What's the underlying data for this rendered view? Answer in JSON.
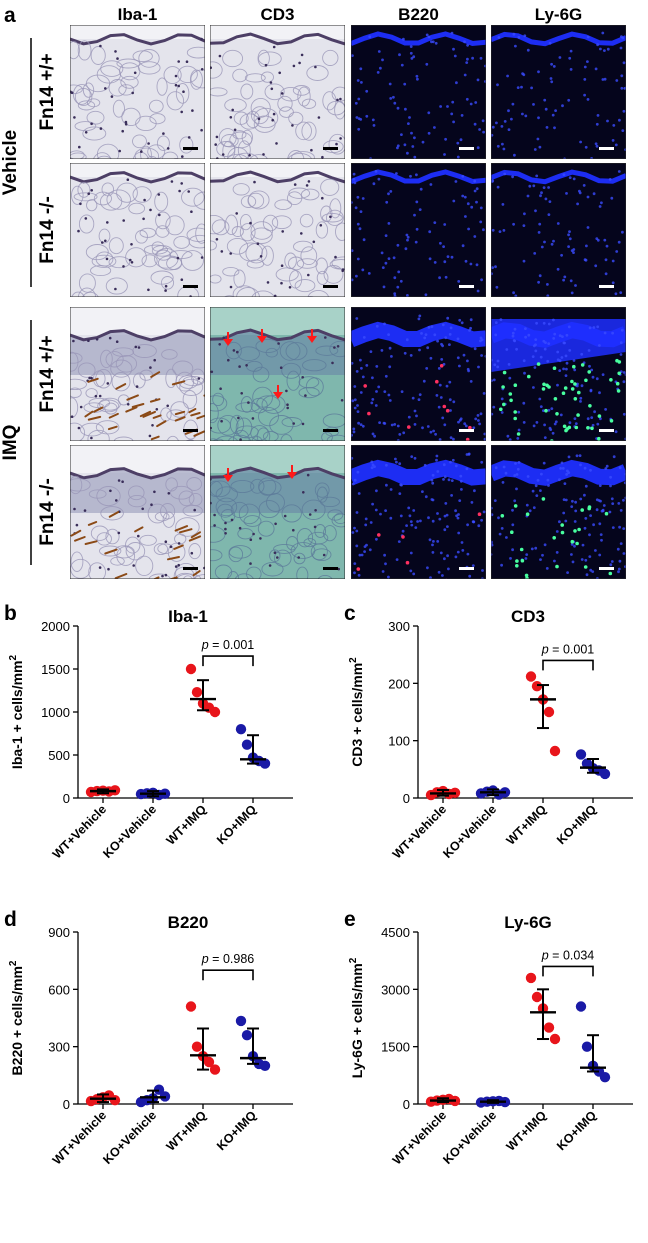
{
  "panel_a": {
    "letter": "a",
    "columns": [
      "Iba-1",
      "CD3",
      "B220",
      "Ly-6G"
    ],
    "groups": [
      {
        "label": "Vehicle",
        "rows": [
          "Fn14 +/+",
          "Fn14 -/-"
        ]
      },
      {
        "label": "IMQ",
        "rows": [
          "Fn14 +/+",
          "Fn14 -/-"
        ]
      }
    ],
    "colors": {
      "ihc_background": "#e4e4ec",
      "teal_background": "#7fb7ad",
      "fluor_background": "#05051c",
      "nuclear_stain": "#1f2fff",
      "b220_signal": "#ff3060",
      "ly6g_signal": "#48ffa0",
      "arrow": "#ff1a1a",
      "scale_bar_dark": "#000000",
      "scale_bar_light": "#ffffff"
    }
  },
  "chart_data": [
    {
      "panel": "b",
      "type": "scatter",
      "title": "Iba-1",
      "xlabel": "",
      "ylabel": "Iba-1 + cells/mm",
      "ylabel_superscript": "2",
      "ylim": [
        0,
        2000
      ],
      "yticks": [
        0,
        500,
        1000,
        1500,
        2000
      ],
      "categories": [
        "WT+Vehicle",
        "KO+Vehicle",
        "WT+IMQ",
        "KO+IMQ"
      ],
      "series": [
        {
          "category": "WT+Vehicle",
          "color": "#e8151b",
          "points": [
            70,
            80,
            85,
            75,
            90
          ],
          "mean": 80,
          "sd_low": 55,
          "sd_high": 100
        },
        {
          "category": "KO+Vehicle",
          "color": "#1a1aa6",
          "points": [
            45,
            55,
            60,
            35,
            50
          ],
          "mean": 50,
          "sd_low": 20,
          "sd_high": 80
        },
        {
          "category": "WT+IMQ",
          "color": "#e8151b",
          "points": [
            1500,
            1230,
            1100,
            1050,
            1000
          ],
          "mean": 1150,
          "sd_low": 1020,
          "sd_high": 1370
        },
        {
          "category": "KO+IMQ",
          "color": "#1a1aa6",
          "points": [
            800,
            620,
            470,
            430,
            400
          ],
          "mean": 450,
          "sd_low": 400,
          "sd_high": 730
        }
      ],
      "annotation": {
        "text": "p = 0.001",
        "between": [
          "WT+IMQ",
          "KO+IMQ"
        ],
        "y": 1650
      }
    },
    {
      "panel": "c",
      "type": "scatter",
      "title": "CD3",
      "xlabel": "",
      "ylabel": "CD3 + cells/mm",
      "ylabel_superscript": "2",
      "ylim": [
        0,
        300
      ],
      "yticks": [
        0,
        100,
        200,
        300
      ],
      "categories": [
        "WT+Vehicle",
        "KO+Vehicle",
        "WT+IMQ",
        "KO+IMQ"
      ],
      "series": [
        {
          "category": "WT+Vehicle",
          "color": "#e8151b",
          "points": [
            5,
            10,
            12,
            7,
            9
          ],
          "mean": 8,
          "sd_low": 4,
          "sd_high": 14
        },
        {
          "category": "KO+Vehicle",
          "color": "#1a1aa6",
          "points": [
            8,
            11,
            13,
            6,
            10
          ],
          "mean": 10,
          "sd_low": 5,
          "sd_high": 15
        },
        {
          "category": "WT+IMQ",
          "color": "#e8151b",
          "points": [
            212,
            195,
            172,
            150,
            82
          ],
          "mean": 172,
          "sd_low": 122,
          "sd_high": 197
        },
        {
          "category": "KO+IMQ",
          "color": "#1a1aa6",
          "points": [
            76,
            60,
            52,
            48,
            42
          ],
          "mean": 53,
          "sd_low": 44,
          "sd_high": 68
        }
      ],
      "annotation": {
        "text": "p = 0.001",
        "between": [
          "WT+IMQ",
          "KO+IMQ"
        ],
        "y": 240
      }
    },
    {
      "panel": "d",
      "type": "scatter",
      "title": "B220",
      "xlabel": "",
      "ylabel": "B220 + cells/mm",
      "ylabel_superscript": "2",
      "ylim": [
        0,
        900
      ],
      "yticks": [
        0,
        300,
        600,
        900
      ],
      "categories": [
        "WT+Vehicle",
        "KO+Vehicle",
        "WT+IMQ",
        "KO+IMQ"
      ],
      "series": [
        {
          "category": "WT+Vehicle",
          "color": "#e8151b",
          "points": [
            15,
            25,
            35,
            45,
            20
          ],
          "mean": 28,
          "sd_low": 10,
          "sd_high": 50
        },
        {
          "category": "KO+Vehicle",
          "color": "#1a1aa6",
          "points": [
            10,
            20,
            30,
            75,
            40
          ],
          "mean": 35,
          "sd_low": 10,
          "sd_high": 70
        },
        {
          "category": "WT+IMQ",
          "color": "#e8151b",
          "points": [
            510,
            300,
            250,
            220,
            180
          ],
          "mean": 255,
          "sd_low": 180,
          "sd_high": 395
        },
        {
          "category": "KO+IMQ",
          "color": "#1a1aa6",
          "points": [
            435,
            360,
            250,
            210,
            200
          ],
          "mean": 240,
          "sd_low": 210,
          "sd_high": 395
        }
      ],
      "annotation": {
        "text": "p = 0.986",
        "between": [
          "WT+IMQ",
          "KO+IMQ"
        ],
        "y": 700
      }
    },
    {
      "panel": "e",
      "type": "scatter",
      "title": "Ly-6G",
      "xlabel": "",
      "ylabel": "Ly-6G + cells/mm",
      "ylabel_superscript": "2",
      "ylim": [
        0,
        4500
      ],
      "yticks": [
        0,
        1500,
        3000,
        4500
      ],
      "categories": [
        "WT+Vehicle",
        "KO+Vehicle",
        "WT+IMQ",
        "KO+IMQ"
      ],
      "series": [
        {
          "category": "WT+Vehicle",
          "color": "#e8151b",
          "points": [
            60,
            90,
            110,
            130,
            80
          ],
          "mean": 90,
          "sd_low": 50,
          "sd_high": 150
        },
        {
          "category": "KO+Vehicle",
          "color": "#1a1aa6",
          "points": [
            40,
            60,
            70,
            80,
            50
          ],
          "mean": 60,
          "sd_low": 30,
          "sd_high": 100
        },
        {
          "category": "WT+IMQ",
          "color": "#e8151b",
          "points": [
            3300,
            2800,
            2500,
            2000,
            1700
          ],
          "mean": 2400,
          "sd_low": 1700,
          "sd_high": 3000
        },
        {
          "category": "KO+IMQ",
          "color": "#1a1aa6",
          "points": [
            2550,
            1500,
            1000,
            850,
            700
          ],
          "mean": 950,
          "sd_low": 850,
          "sd_high": 1800
        }
      ],
      "annotation": {
        "text": "p = 0.034",
        "between": [
          "WT+IMQ",
          "KO+IMQ"
        ],
        "y": 3600
      }
    }
  ]
}
